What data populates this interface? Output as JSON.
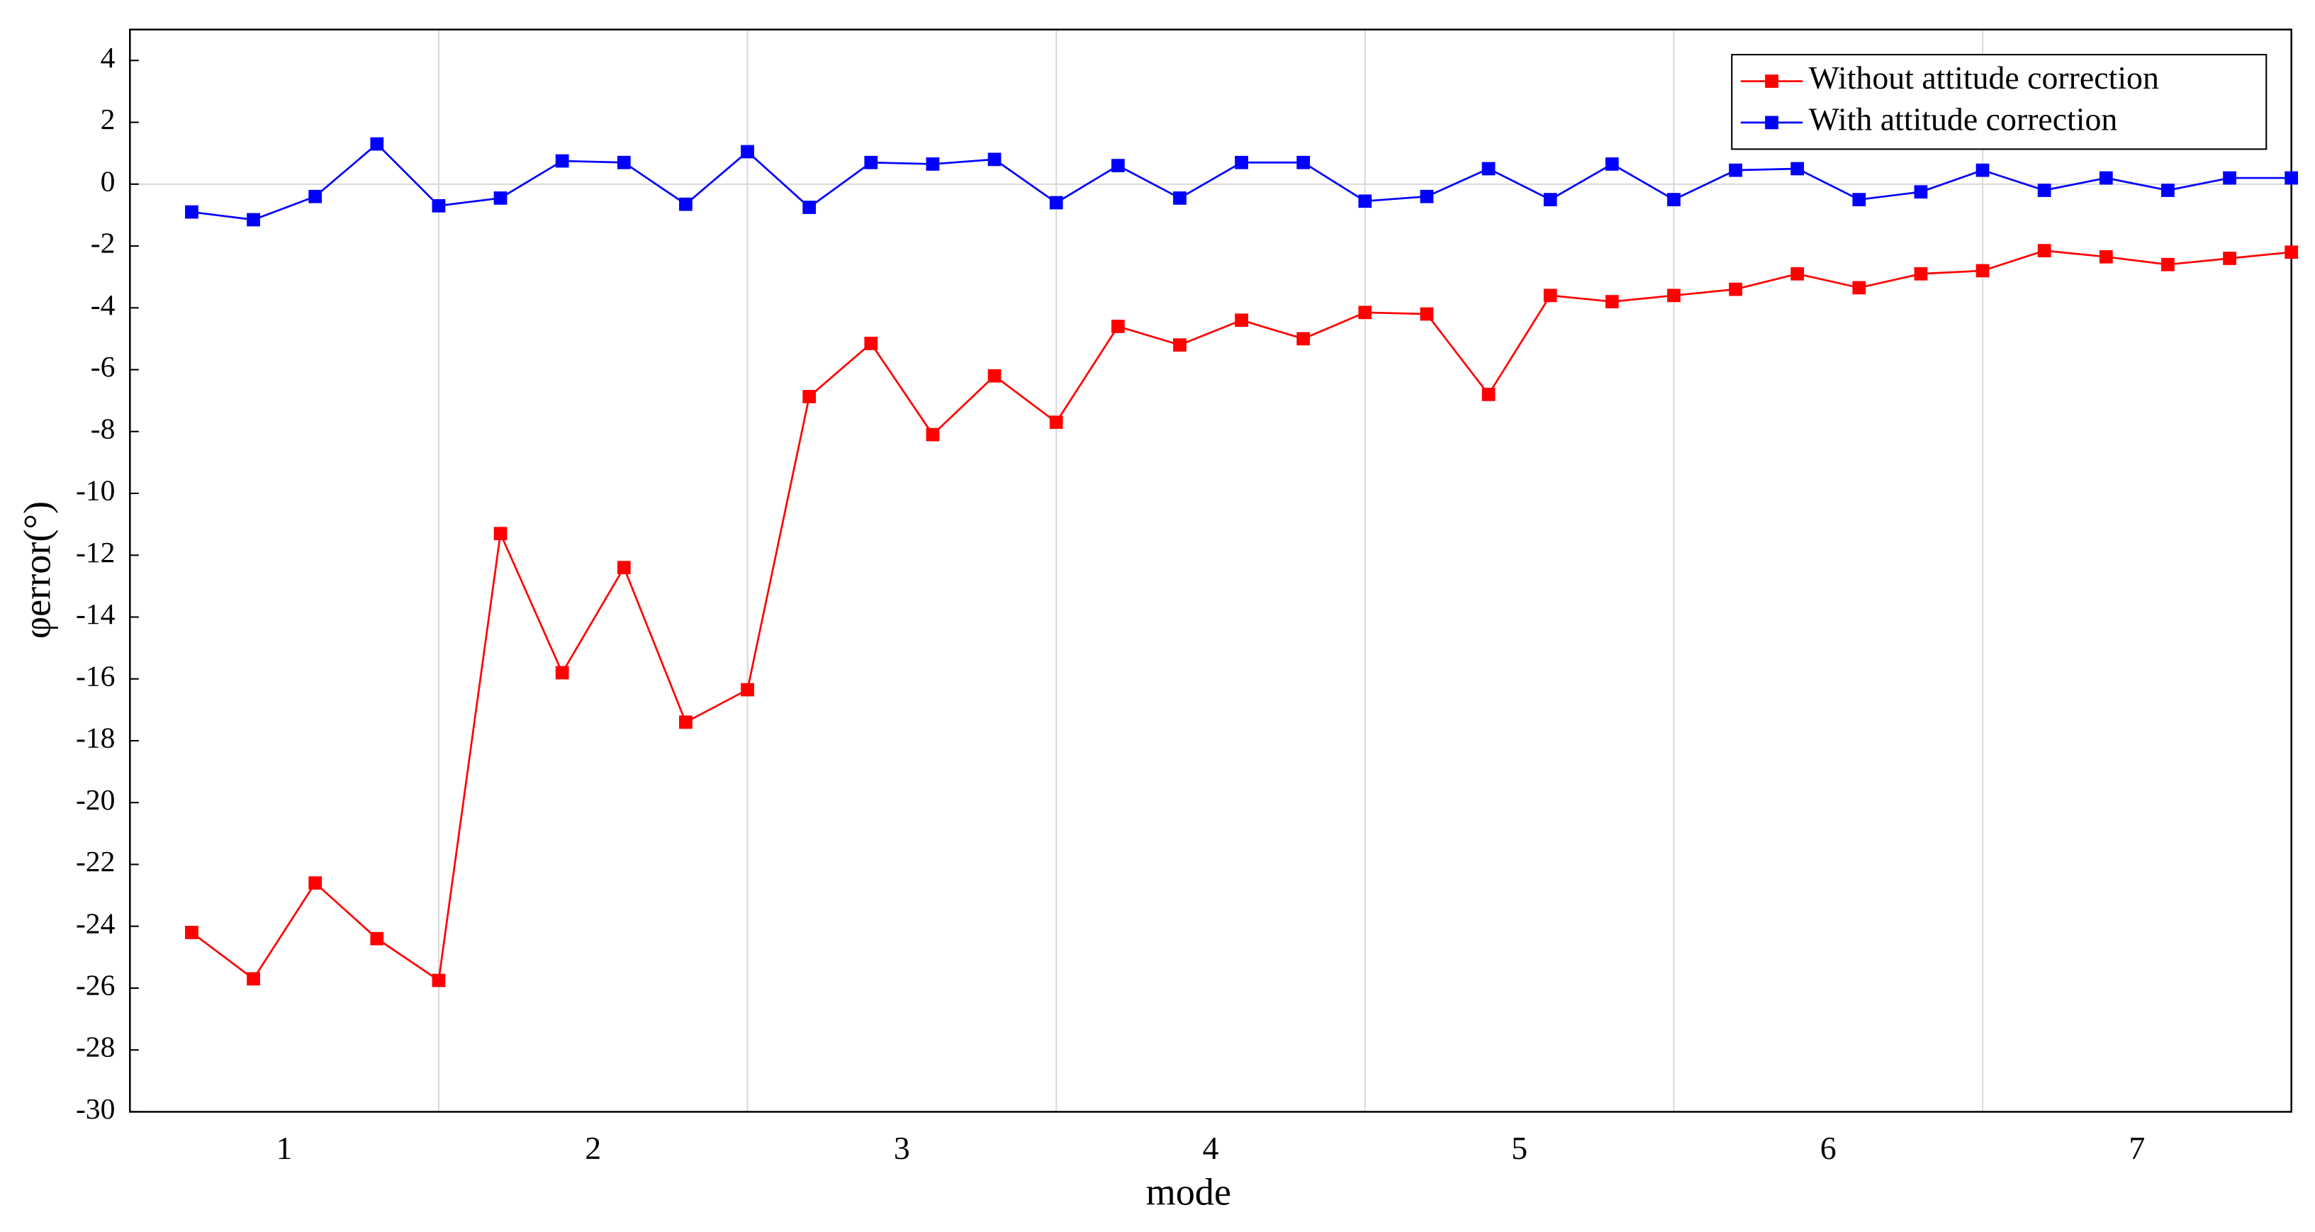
{
  "chart_data": {
    "type": "line",
    "x_label": "mode",
    "y_label": "φerror(°)",
    "x": [
      0.2,
      0.4,
      0.6,
      0.8,
      1.0,
      1.2,
      1.4,
      1.6,
      1.8,
      2.0,
      2.2,
      2.4,
      2.6,
      2.8,
      3.0,
      3.2,
      3.4,
      3.6,
      3.8,
      4.0,
      4.2,
      4.4,
      4.6,
      4.8,
      5.0,
      5.2,
      5.4,
      5.6,
      5.8,
      6.0,
      6.2,
      6.4,
      6.6,
      6.8,
      7.0
    ],
    "series": [
      {
        "name": "Without attitude correction",
        "color": "#ff0000",
        "values": [
          -24.2,
          -25.7,
          -22.6,
          -24.4,
          -25.75,
          -11.3,
          -15.8,
          -12.4,
          -17.4,
          -16.35,
          -6.87,
          -5.15,
          -8.1,
          -6.2,
          -7.7,
          -4.6,
          -5.2,
          -4.4,
          -5.0,
          -4.15,
          -4.2,
          -6.8,
          -3.6,
          -3.8,
          -3.6,
          -3.4,
          -2.9,
          -3.35,
          -2.9,
          -2.8,
          -2.15,
          -2.35,
          -2.6,
          -2.4,
          -2.2
        ]
      },
      {
        "name": "With attitude correction",
        "color": "#0000ff",
        "values": [
          -0.9,
          -1.15,
          -0.4,
          1.3,
          -0.7,
          -0.45,
          0.75,
          0.7,
          -0.65,
          1.05,
          -0.75,
          0.7,
          0.65,
          0.8,
          -0.6,
          0.6,
          -0.45,
          0.7,
          0.7,
          -0.55,
          -0.4,
          0.5,
          -0.5,
          0.65,
          -0.5,
          0.45,
          0.5,
          -0.5,
          -0.25,
          0.45,
          -0.2,
          0.2,
          -0.2,
          0.2,
          0.2
        ]
      }
    ],
    "xlim": [
      0,
      7
    ],
    "xticks": [
      {
        "value": 0.5,
        "label": "1"
      },
      {
        "value": 1.5,
        "label": "2"
      },
      {
        "value": 2.5,
        "label": "3"
      },
      {
        "value": 3.5,
        "label": "4"
      },
      {
        "value": 4.5,
        "label": "5"
      },
      {
        "value": 5.5,
        "label": "6"
      },
      {
        "value": 6.5,
        "label": "7"
      }
    ],
    "ylim": [
      -30,
      5
    ],
    "yticks": [
      -30,
      -28,
      -26,
      -24,
      -22,
      -20,
      -18,
      -16,
      -14,
      -12,
      -10,
      -8,
      -6,
      -4,
      -2,
      0,
      2,
      4
    ],
    "grid": true,
    "legend": "upper right"
  }
}
